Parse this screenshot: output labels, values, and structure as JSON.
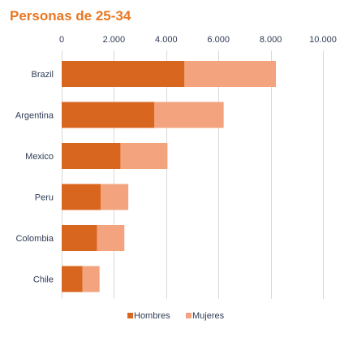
{
  "colors": {
    "title": "#e87722",
    "hombres": "#d9661f",
    "mujeres": "#f3a47f",
    "grid": "#d9d9d9",
    "text": "#2f3b55"
  },
  "chart_data": {
    "type": "bar",
    "orientation": "horizontal",
    "stacked": true,
    "title": "Personas de 25-34",
    "categories": [
      "Brazil",
      "Argentina",
      "Mexico",
      "Peru",
      "Colombia",
      "Chile"
    ],
    "series": [
      {
        "name": "Hombres",
        "values": [
          4700,
          3550,
          2250,
          1500,
          1350,
          800
        ]
      },
      {
        "name": "Mujeres",
        "values": [
          3500,
          2650,
          1800,
          1050,
          1050,
          650
        ]
      }
    ],
    "xlim": [
      0,
      10000
    ],
    "xticks": [
      0,
      2000,
      4000,
      6000,
      8000,
      10000
    ],
    "xtick_labels": [
      "0",
      "2.000",
      "4.000",
      "6.000",
      "8.000",
      "10.000"
    ],
    "x_axis_position": "top",
    "grid": true,
    "legend_position": "bottom"
  }
}
